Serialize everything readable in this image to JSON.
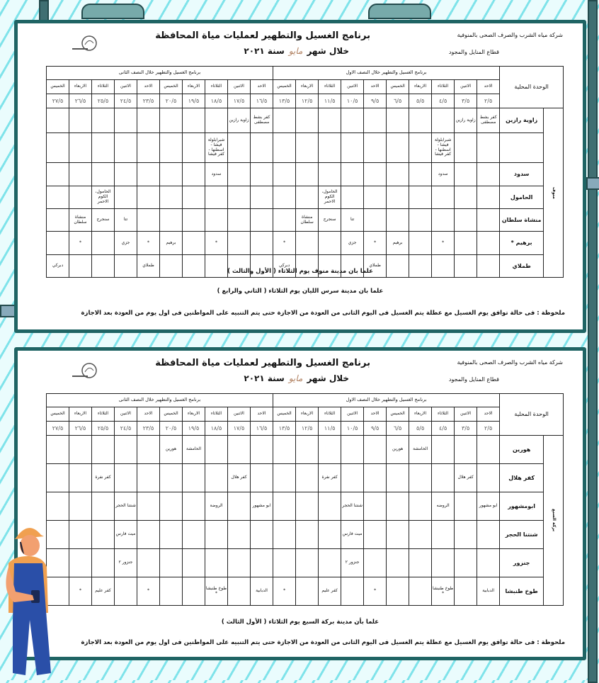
{
  "colors": {
    "frame": "#1f6464",
    "background_stripes": "#7fe3ea",
    "worker_overalls": "#2a4fa8",
    "worker_helmet": "#f0a050"
  },
  "header": {
    "company": "شركة مياه الشرب والصرف الصحى بالمنوفية",
    "sector": "قطاع المنايل والمجود",
    "title": "برنامج الغسيل والتطهير لعمليات مياة المحافظة",
    "period_prefix": "خلال شهر",
    "month": "مايو",
    "year_label": "سنة ٢٠٢١"
  },
  "table_headers": {
    "unit": "الوحدة المحلية",
    "first_half": "برنامج الغسيل والتطهير خلال النصف الاول",
    "second_half": "برنامج الغسيل والتطهير خلال النصف الثانى",
    "days_first": [
      "الاحد",
      "الاثنين",
      "الثلاثاء",
      "الاربعاء",
      "الخميس",
      "الاحد",
      "الاثنين",
      "الثلاثاء",
      "الاربعاء",
      "الخميس"
    ],
    "days_second": [
      "الاحد",
      "الاثنين",
      "الثلاثاء",
      "الاربعاء",
      "الخميس",
      "الاحد",
      "الاثنين",
      "الثلاثاء",
      "الاربعاء",
      "الخميس"
    ],
    "dates_first": [
      "٢/٥",
      "٣/٥",
      "٤/٥",
      "٥/٥",
      "٦/٥",
      "٩/٥",
      "١٠/٥",
      "١١/٥",
      "١٢/٥",
      "١٣/٥"
    ],
    "dates_second": [
      "١٦/٥",
      "١٧/٥",
      "١٨/٥",
      "١٩/٥",
      "٢٠/٥",
      "٢٣/٥",
      "٢٤/٥",
      "٢٥/٥",
      "٢٦/٥",
      "٢٧/٥"
    ]
  },
  "tables": [
    {
      "group": "منوف",
      "rows": [
        {
          "label": "زاوية رازين",
          "first": [
            "كفر بشط مصطفى",
            "زاوية رازين",
            "",
            "",
            "",
            "",
            "",
            "",
            "",
            ""
          ],
          "second": [
            "كفر بشط مصطفى",
            "زاوية رازين",
            "",
            "",
            "",
            "",
            "",
            "",
            "",
            ""
          ]
        },
        {
          "label": "",
          "first": [
            "",
            "",
            "شبرابلولة فيشا - اسطنها - كفر فيشا",
            "",
            "",
            "",
            "",
            "",
            "",
            ""
          ],
          "second": [
            "",
            "",
            "شبرابلولة فيشا - اسطنها - كفر فيشا",
            "",
            "",
            "",
            "",
            "",
            "",
            ""
          ]
        },
        {
          "label": "سدود",
          "first": [
            "",
            "",
            "سدود",
            "",
            "",
            "",
            "",
            "",
            "",
            ""
          ],
          "second": [
            "",
            "",
            "سدود",
            "",
            "",
            "",
            "",
            "",
            "",
            ""
          ]
        },
        {
          "label": "الحامول",
          "first": [
            "",
            "",
            "",
            "",
            "",
            "",
            "",
            "الحامول، الكوم الاحمر",
            "",
            ""
          ],
          "second": [
            "",
            "",
            "",
            "",
            "",
            "",
            "",
            "الحامول، الكوم الاحمر",
            "",
            ""
          ]
        },
        {
          "label": "منشاة سلطان",
          "first": [
            "",
            "",
            "",
            "",
            "",
            "",
            "تتا",
            "سنجرج",
            "منشاة سلطان",
            ""
          ],
          "second": [
            "",
            "",
            "",
            "",
            "",
            "",
            "تتا",
            "سنجرج",
            "منشاة سلطان",
            ""
          ]
        },
        {
          "label": "برهيم *",
          "first": [
            "",
            "",
            "*",
            "",
            "برهيم",
            "*",
            "جزي",
            "",
            "",
            "*"
          ],
          "second": [
            "",
            "",
            "*",
            "",
            "برهيم",
            "*",
            "جزي",
            "",
            "*",
            ""
          ]
        },
        {
          "label": "طملاي",
          "first": [
            "",
            "",
            "",
            "",
            "",
            "طملاي",
            "",
            "",
            "",
            "دبركي"
          ],
          "second": [
            "",
            "",
            "",
            "",
            "",
            "طملاي",
            "",
            "",
            "",
            "دبركي"
          ]
        }
      ],
      "notes": [
        "علما بان مدينة منوف يوم الثلاثاء ( الأول والثالث )",
        "علما بان مدينة سرس الليان يوم الثلاثاء ( الثاني والرابع )"
      ],
      "remark": "ملحوظة : فى حالة توافق يوم الغسيل مع عطلة يتم الغسيل فى اليوم الثانى من العودة من الاجازة حتى يتم التنبيه على المواطنين فى اول يوم من العودة بعد الاجازة"
    },
    {
      "group": "بركة السبع",
      "rows": [
        {
          "label": "هورين",
          "first": [
            "",
            "",
            "",
            "الحامشة",
            "هورين",
            "",
            "",
            "",
            "",
            ""
          ],
          "second": [
            "",
            "",
            "",
            "الحامشة",
            "هورين",
            "",
            "",
            "",
            "",
            ""
          ]
        },
        {
          "label": "كفر هلال",
          "first": [
            "",
            "كفر هلال",
            "",
            "",
            "",
            "",
            "",
            "كفر نفرة",
            "",
            ""
          ],
          "second": [
            "",
            "كفر هلال",
            "",
            "",
            "",
            "",
            "",
            "كفر نفرة",
            "",
            ""
          ]
        },
        {
          "label": "ابومشهور",
          "first": [
            "ابو مشهور",
            "",
            "الروضه",
            "",
            "",
            "",
            "شنتنا الحجر",
            "",
            "",
            ""
          ],
          "second": [
            "ابو مشهور",
            "",
            "الروضة",
            "",
            "",
            "",
            "شنتنا الحجر",
            "",
            "",
            ""
          ]
        },
        {
          "label": "شنتنا الحجر",
          "first": [
            "",
            "",
            "",
            "",
            "",
            "",
            "ميت فارس",
            "",
            "",
            ""
          ],
          "second": [
            "",
            "",
            "",
            "",
            "",
            "",
            "ميت فارس",
            "",
            "",
            ""
          ]
        },
        {
          "label": "جنزور",
          "first": [
            "",
            "",
            "",
            "",
            "",
            "",
            "جنزور ٢",
            "",
            "",
            ""
          ],
          "second": [
            "",
            "",
            "",
            "",
            "",
            "",
            "جنزور ٢",
            "",
            "",
            ""
          ]
        },
        {
          "label": "طوخ طنبشا",
          "first": [
            "الدبابية",
            "",
            "طوخ طنبشا *",
            "",
            "",
            "*",
            "",
            "كفر عليم",
            "",
            "*"
          ],
          "second": [
            "الدبابية",
            "",
            "طوخ طنبشا *",
            "",
            "",
            "*",
            "",
            "كفر عليم",
            "*",
            ""
          ]
        }
      ],
      "notes": [
        "علما بأن مدينة بركة السبع يوم الثلاثاء ( الأول الثالث )"
      ],
      "remark": "ملحوظة : فى حالة توافق يوم الغسيل مع عطلة يتم الغسيل فى اليوم الثانى من العودة من الاجازة حتى يتم التنبيه على المواطنين فى اول يوم من العودة بعد الاجازة"
    }
  ]
}
